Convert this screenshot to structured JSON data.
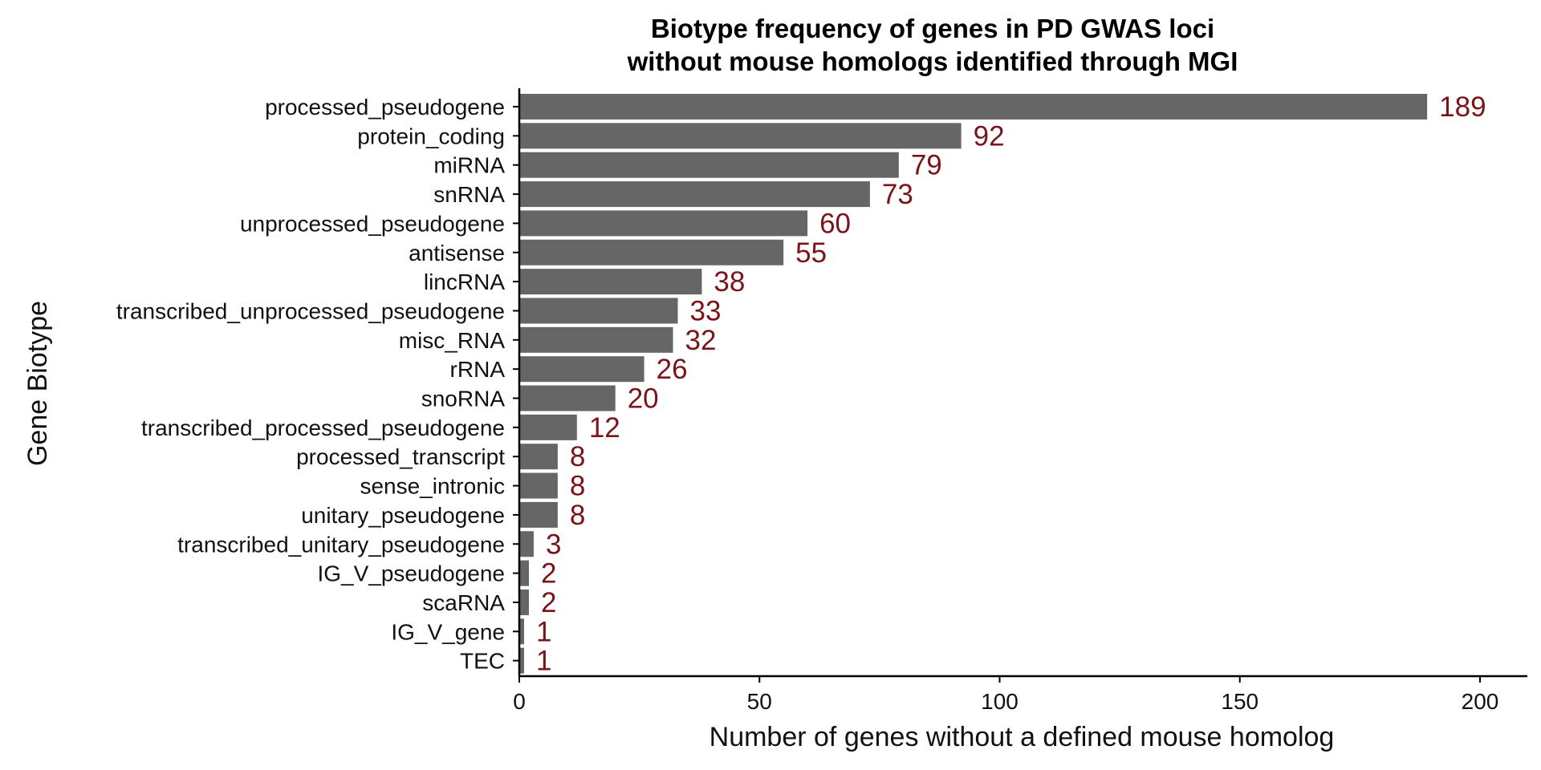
{
  "chart_data": {
    "type": "bar",
    "orientation": "horizontal",
    "title": "Biotype frequency of genes in PD GWAS loci",
    "subtitle": "without mouse homologs identified through MGI",
    "xlabel": "Number of genes without a defined mouse homolog",
    "ylabel": "Gene Biotype",
    "xlim": [
      0,
      210
    ],
    "xticks": [
      0,
      50,
      100,
      150,
      200
    ],
    "grid": false,
    "legend": "none",
    "categories": [
      "processed_pseudogene",
      "protein_coding",
      "miRNA",
      "snRNA",
      "unprocessed_pseudogene",
      "antisense",
      "lincRNA",
      "transcribed_unprocessed_pseudogene",
      "misc_RNA",
      "rRNA",
      "snoRNA",
      "transcribed_processed_pseudogene",
      "processed_transcript",
      "sense_intronic",
      "unitary_pseudogene",
      "transcribed_unitary_pseudogene",
      "IG_V_pseudogene",
      "scaRNA",
      "IG_V_gene",
      "TEC"
    ],
    "values": [
      189,
      92,
      79,
      73,
      60,
      55,
      38,
      33,
      32,
      26,
      20,
      12,
      8,
      8,
      8,
      3,
      2,
      2,
      1,
      1
    ],
    "data_labels": [
      "189",
      "92",
      "79",
      "73",
      "60",
      "55",
      "38",
      "33",
      "32",
      "26",
      "20",
      "12",
      "8",
      "8",
      "8",
      "3",
      "2",
      "2",
      "1",
      "1"
    ]
  },
  "colors": {
    "bar": "#666666",
    "label": "#7a1418",
    "axis": "#000000"
  }
}
